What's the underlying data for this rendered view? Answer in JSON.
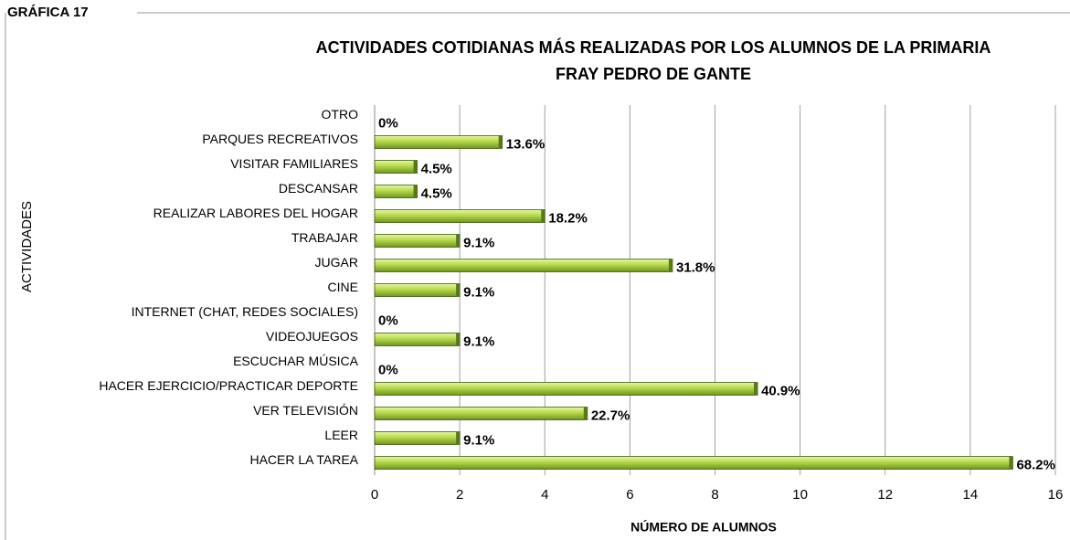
{
  "label": "GRÁFICA 17",
  "chart_data": {
    "type": "hbar",
    "title": [
      "ACTIVIDADES COTIDIANAS MÁS REALIZADAS  POR LOS ALUMNOS DE LA PRIMARIA",
      "FRAY PEDRO DE GANTE"
    ],
    "x_label": "NÚMERO DE ALUMNOS",
    "y_label": "ACTIVIDADES",
    "categories": [
      "OTRO",
      "PARQUES RECREATIVOS",
      "VISITAR  FAMILIARES",
      "DESCANSAR",
      "REALIZAR LABORES DEL HOGAR",
      "TRABAJAR",
      "JUGAR",
      "CINE",
      "INTERNET (CHAT, REDES SOCIALES)",
      "VIDEOJUEGOS",
      "ESCUCHAR MÚSICA",
      "HACER EJERCICIO/PRACTICAR DEPORTE",
      "VER TELEVISIÓN",
      "LEER",
      "HACER LA TAREA"
    ],
    "values": [
      0,
      3,
      1,
      1,
      4,
      2,
      7,
      2,
      0,
      2,
      0,
      9,
      5,
      2,
      15
    ],
    "value_labels": [
      "0%",
      "13.6%",
      "4.5%",
      "4.5%",
      "18.2%",
      "9.1%",
      "31.8%",
      "9.1%",
      "0%",
      "9.1%",
      "0%",
      "40.9%",
      "22.7%",
      "9.1%",
      "68.2%"
    ],
    "color": "#b5d94a",
    "xlim": [
      0,
      16
    ],
    "xticks": [
      0,
      2,
      4,
      6,
      8,
      10,
      12,
      14,
      16
    ],
    "grid": true
  }
}
